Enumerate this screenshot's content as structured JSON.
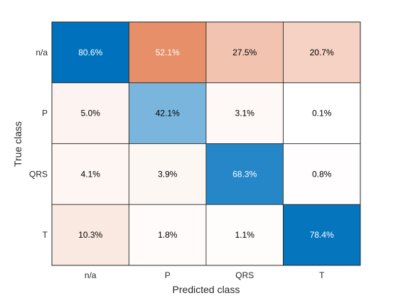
{
  "chart_data": {
    "type": "heatmap",
    "xlabel": "Predicted class",
    "ylabel": "True class",
    "x_categories": [
      "n/a",
      "P",
      "QRS",
      "T"
    ],
    "y_categories": [
      "n/a",
      "P",
      "QRS",
      "T"
    ],
    "values": [
      [
        80.6,
        52.1,
        27.5,
        20.7
      ],
      [
        5.0,
        42.1,
        3.1,
        0.1
      ],
      [
        4.1,
        3.9,
        68.3,
        0.8
      ],
      [
        10.3,
        1.8,
        1.1,
        78.4
      ]
    ],
    "labels": [
      [
        "80.6%",
        "52.1%",
        "27.5%",
        "20.7%"
      ],
      [
        "5.0%",
        "42.1%",
        "3.1%",
        "0.1%"
      ],
      [
        "4.1%",
        "3.9%",
        "68.3%",
        "0.8%"
      ],
      [
        "10.3%",
        "1.8%",
        "1.1%",
        "78.4%"
      ]
    ],
    "colors": {
      "diagonal": "#0072bd",
      "off_diagonal": "#d95319",
      "light_text": "#ffffff",
      "dark_text": "#000000"
    }
  }
}
